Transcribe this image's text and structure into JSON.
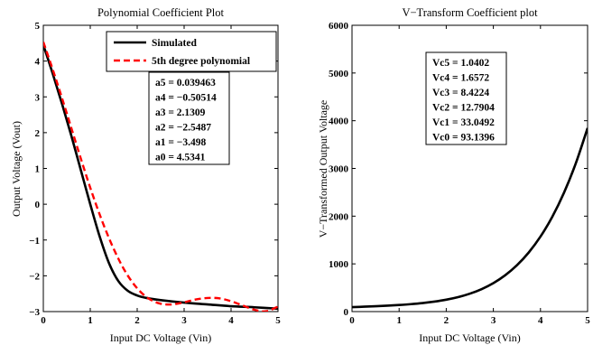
{
  "chart_data": [
    {
      "type": "line",
      "title": "Polynomial Coefficient Plot",
      "xlabel": "Input DC Voltage (Vin)",
      "ylabel": "Output Voltage (Vout)",
      "xlim": [
        0,
        5
      ],
      "ylim": [
        -3,
        5
      ],
      "xticks": [
        "0",
        "1",
        "2",
        "3",
        "4",
        "5"
      ],
      "yticks": [
        "−3",
        "−2",
        "−1",
        "0",
        "1",
        "2",
        "3",
        "4",
        "5"
      ],
      "legend": {
        "placement": "top-right",
        "entries": [
          "Simulated",
          "5th degree polynomial"
        ]
      },
      "series": [
        {
          "name": "Simulated",
          "color": "#000000",
          "style": "solid",
          "x": [
            0,
            0.2,
            0.4,
            0.6,
            0.8,
            1.0,
            1.2,
            1.4,
            1.6,
            1.8,
            2.0,
            2.2,
            2.5,
            3.0,
            3.5,
            4.0,
            4.5,
            5.0
          ],
          "y": [
            4.45,
            3.65,
            2.8,
            1.9,
            0.95,
            0.0,
            -0.9,
            -1.65,
            -2.15,
            -2.42,
            -2.55,
            -2.62,
            -2.68,
            -2.75,
            -2.8,
            -2.85,
            -2.88,
            -2.92
          ]
        },
        {
          "name": "5th degree polynomial",
          "color": "#ff0000",
          "style": "dashed",
          "x": [
            0,
            0.25,
            0.5,
            0.75,
            1.0,
            1.25,
            1.5,
            1.75,
            2.0,
            2.25,
            2.5,
            2.75,
            3.0,
            3.25,
            3.5,
            3.75,
            4.0,
            4.25,
            4.5,
            4.75,
            5.0
          ],
          "y": [
            4.534,
            3.57,
            2.54,
            1.48,
            0.46,
            -0.46,
            -1.25,
            -1.89,
            -2.35,
            -2.64,
            -2.78,
            -2.8,
            -2.74,
            -2.66,
            -2.62,
            -2.63,
            -2.71,
            -2.83,
            -2.95,
            -2.99,
            -2.86
          ]
        }
      ],
      "annotation": [
        "a5 = 0.039463",
        "a4 = −0.50514",
        "a3 = 2.1309",
        "a2 = −2.5487",
        "a1 = −3.498",
        "a0 = 4.5341"
      ]
    },
    {
      "type": "line",
      "title": "V−Transform Coefficient plot",
      "xlabel": "Input DC Voltage (Vin)",
      "ylabel": "V−Transformed Output Voltage",
      "xlim": [
        0,
        5
      ],
      "ylim": [
        0,
        6000
      ],
      "xticks": [
        "0",
        "1",
        "2",
        "3",
        "4",
        "5"
      ],
      "yticks": [
        "0",
        "1000",
        "2000",
        "3000",
        "4000",
        "5000",
        "6000"
      ],
      "series": [
        {
          "color": "#000000",
          "style": "solid",
          "x": [
            0,
            0.25,
            0.5,
            0.75,
            1.0,
            1.25,
            1.5,
            1.75,
            2.0,
            2.25,
            2.5,
            2.75,
            3.0,
            3.25,
            3.5,
            3.75,
            4.0,
            4.25,
            4.5,
            4.75,
            5.0
          ],
          "y": [
            93.1,
            102.4,
            112.7,
            124.3,
            138.6,
            156.3,
            179.0,
            209.1,
            249.2,
            303.0,
            375.1,
            470.8,
            596.8,
            760.6,
            970.9,
            1237.5,
            1571.5,
            1985.2,
            2492.1,
            3107.3,
            3846.8
          ]
        }
      ],
      "annotation": [
        "Vc5 = 1.0402",
        "Vc4 = 1.6572",
        "Vc3 = 8.4224",
        "Vc2 = 12.7904",
        "Vc1 = 33.0492",
        "Vc0 = 93.1396"
      ]
    }
  ]
}
